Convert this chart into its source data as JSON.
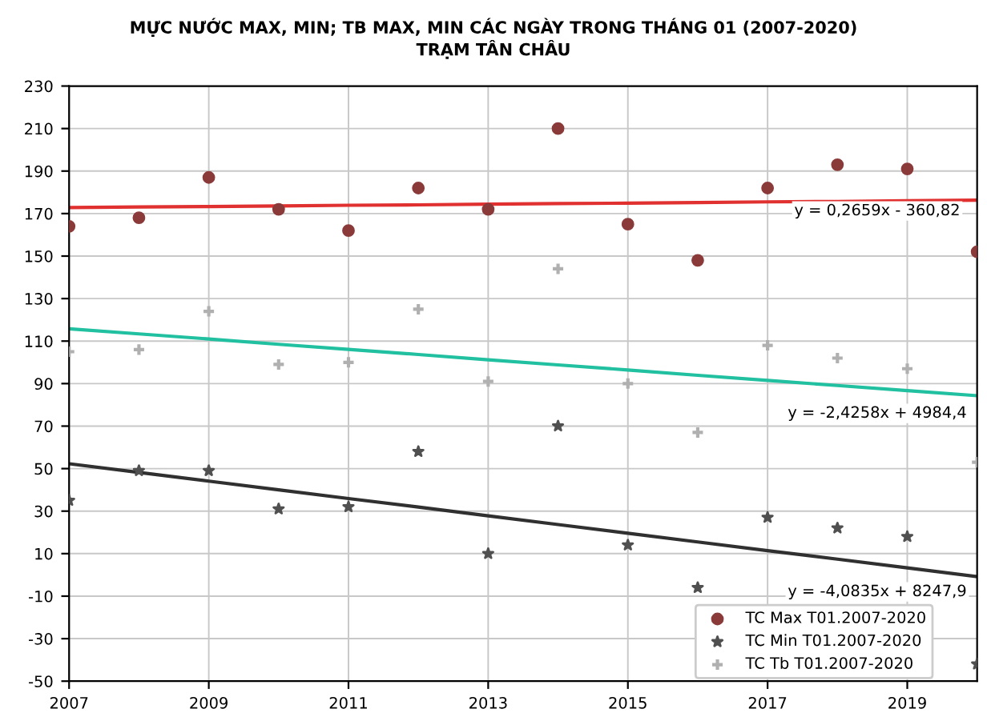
{
  "chart_data": {
    "type": "scatter",
    "title": "MỰC NƯỚC MAX, MIN; TB MAX, MIN CÁC NGÀY TRONG THÁNG 01 (2007-2020)\nTRẠM TÂN CHÂU",
    "x": [
      2007,
      2008,
      2009,
      2010,
      2011,
      2012,
      2013,
      2014,
      2015,
      2016,
      2017,
      2018,
      2019,
      2020
    ],
    "series": [
      {
        "name": "TC Max T01.2007-2020",
        "color": "#8b3a3a",
        "marker": "circle",
        "values": [
          164,
          168,
          187,
          172,
          162,
          182,
          172,
          210,
          165,
          148,
          182,
          193,
          191,
          152
        ]
      },
      {
        "name": "TC Min T01.2007-2020",
        "color": "#505050",
        "marker": "star",
        "values": [
          35,
          49,
          49,
          31,
          32,
          58,
          10,
          70,
          14,
          -6,
          27,
          22,
          18,
          -42
        ]
      },
      {
        "name": "TC Tb T01.2007-2020",
        "color": "#b0b0b0",
        "marker": "cross",
        "values": [
          105,
          106,
          124,
          99,
          100,
          125,
          91,
          144,
          90,
          67,
          108,
          102,
          97,
          53
        ]
      },
      {
        "type": "line",
        "color": "#e03030",
        "values": [
          172.8,
          173.1,
          173.3,
          173.6,
          173.9,
          174.1,
          174.4,
          174.7,
          174.9,
          175.2,
          175.5,
          175.7,
          176.0,
          176.3
        ]
      },
      {
        "type": "line",
        "color": "#20c0a0",
        "values": [
          115.8,
          113.4,
          111.0,
          108.5,
          106.1,
          103.7,
          101.2,
          98.8,
          96.4,
          93.9,
          91.5,
          89.1,
          86.7,
          84.3
        ]
      },
      {
        "type": "line",
        "color": "#303030",
        "values": [
          52.3,
          48.2,
          44.1,
          40.0,
          35.9,
          31.9,
          27.8,
          23.7,
          19.6,
          15.5,
          11.4,
          7.4,
          3.3,
          -0.8
        ]
      }
    ],
    "annotations": [
      "y = 0,2659x - 360,82",
      "y = -2,4258x + 4984,4",
      "y = -4,0835x + 8247,9"
    ],
    "xlim": [
      2007,
      2020
    ],
    "xticks": [
      2007,
      2009,
      2011,
      2013,
      2015,
      2017,
      2019
    ],
    "ylim": [
      -50,
      230
    ],
    "yticks": [
      -50,
      -30,
      -10,
      10,
      30,
      50,
      70,
      90,
      110,
      130,
      150,
      170,
      190,
      210,
      230
    ],
    "grid": true,
    "legend": "bottom right"
  }
}
